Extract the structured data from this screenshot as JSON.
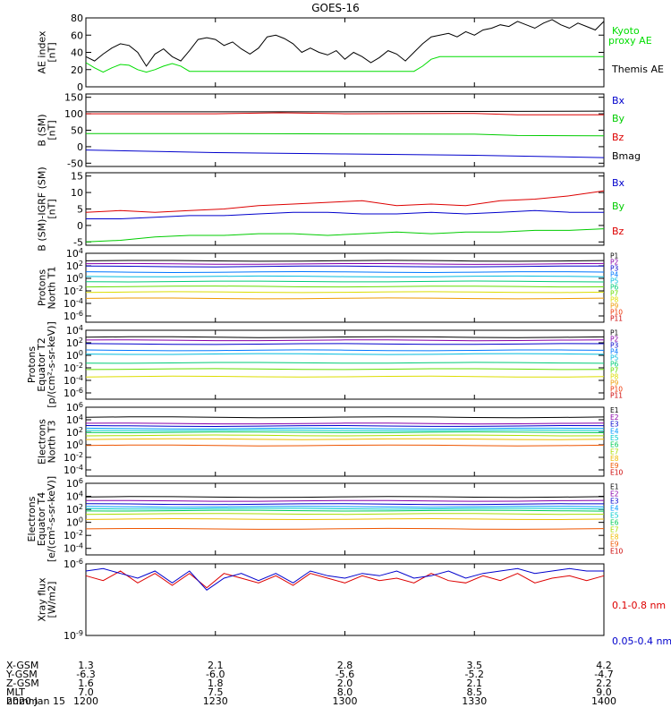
{
  "chart_data": {
    "title": "GOES-16",
    "date_label": "2020 Jan 15",
    "x_axis": {
      "rows": [
        {
          "name": "X-GSM",
          "values": [
            "1.3",
            "2.1",
            "2.8",
            "3.5",
            "4.2"
          ]
        },
        {
          "name": "Y-GSM",
          "values": [
            "-6.3",
            "-6.0",
            "-5.6",
            "-5.2",
            "-4.7"
          ]
        },
        {
          "name": "Z-GSM",
          "values": [
            "1.6",
            "1.8",
            "2.0",
            "2.1",
            "2.2"
          ]
        },
        {
          "name": "MLT",
          "values": [
            "7.0",
            "7.5",
            "8.0",
            "8.5",
            "9.0"
          ]
        },
        {
          "name": "hhmm",
          "values": [
            "1200",
            "1230",
            "1300",
            "1330",
            "1400"
          ]
        }
      ],
      "range_minutes": [
        0,
        120
      ]
    },
    "panels": [
      {
        "id": "ae",
        "type": "line",
        "ylabel": [
          "AE index",
          "[nT]"
        ],
        "ylim": [
          0,
          80
        ],
        "yticks": [
          "0",
          "20",
          "40",
          "60",
          "80"
        ],
        "legend": [
          {
            "label": "Kyoto",
            "color": "#00dd00"
          },
          {
            "label": "proxy AE",
            "color": "#00dd00"
          },
          {
            "label": "Themis AE",
            "color": "#000000"
          }
        ],
        "series": [
          {
            "name": "Themis AE",
            "color": "#000000",
            "x": [
              0,
              2,
              4,
              6,
              8,
              10,
              12,
              14,
              16,
              18,
              20,
              22,
              24,
              26,
              28,
              30,
              32,
              34,
              36,
              38,
              40,
              42,
              44,
              46,
              48,
              50,
              52,
              54,
              56,
              58,
              60,
              62,
              64,
              66,
              68,
              70,
              72,
              74,
              76,
              78,
              80,
              82,
              84,
              86,
              88,
              90,
              92,
              94,
              96,
              98,
              100,
              102,
              104,
              106,
              108,
              110,
              112,
              114,
              116,
              118,
              120
            ],
            "y": [
              35,
              30,
              38,
              45,
              50,
              48,
              40,
              24,
              38,
              44,
              35,
              30,
              42,
              55,
              57,
              55,
              48,
              52,
              44,
              38,
              45,
              58,
              60,
              56,
              50,
              40,
              45,
              40,
              37,
              42,
              32,
              40,
              35,
              28,
              34,
              42,
              38,
              30,
              40,
              50,
              58,
              60,
              62,
              58,
              64,
              60,
              66,
              68,
              72,
              70,
              76,
              72,
              68,
              74,
              78,
              72,
              68,
              74,
              70,
              66,
              76
            ]
          },
          {
            "name": "Kyoto proxy AE",
            "color": "#00dd00",
            "x": [
              0,
              2,
              4,
              6,
              8,
              10,
              12,
              14,
              16,
              18,
              20,
              22,
              24,
              30,
              40,
              50,
              60,
              70,
              75,
              76,
              78,
              80,
              82,
              84,
              90,
              100,
              110,
              120
            ],
            "y": [
              28,
              22,
              17,
              22,
              26,
              25,
              20,
              17,
              20,
              24,
              27,
              24,
              18,
              18,
              18,
              18,
              18,
              18,
              18,
              18,
              24,
              32,
              35,
              35,
              35,
              35,
              35,
              35
            ]
          }
        ]
      },
      {
        "id": "bfield",
        "type": "line",
        "ylabel": [
          "B (SM)",
          "[nT]"
        ],
        "ylim": [
          -60,
          160
        ],
        "yticks": [
          "-50",
          "0",
          "50",
          "100",
          "150"
        ],
        "legend": [
          {
            "label": "Bx",
            "color": "#0000cc"
          },
          {
            "label": "By",
            "color": "#00cc00"
          },
          {
            "label": "Bz",
            "color": "#dd0000"
          },
          {
            "label": "Bmag",
            "color": "#000000"
          }
        ],
        "series": [
          {
            "name": "Bmag",
            "color": "#000000",
            "x": [
              0,
              30,
              60,
              90,
              120
            ],
            "y": [
              106,
              106,
              106,
              107,
              108
            ]
          },
          {
            "name": "Bz",
            "color": "#dd0000",
            "x": [
              0,
              30,
              45,
              60,
              90,
              100,
              120
            ],
            "y": [
              100,
              100,
              103,
              100,
              101,
              97,
              97
            ]
          },
          {
            "name": "By",
            "color": "#00cc00",
            "x": [
              0,
              30,
              60,
              90,
              100,
              120
            ],
            "y": [
              40,
              40,
              39,
              38,
              34,
              33
            ]
          },
          {
            "name": "Bx",
            "color": "#0000cc",
            "x": [
              0,
              30,
              60,
              90,
              120
            ],
            "y": [
              -10,
              -18,
              -22,
              -26,
              -33
            ]
          }
        ]
      },
      {
        "id": "bdiff",
        "type": "line",
        "ylabel": [
          "B (SM)-IGRF (SM)",
          "[nT]"
        ],
        "ylim": [
          -6,
          16
        ],
        "yticks": [
          "-5",
          "0",
          "5",
          "10",
          "15"
        ],
        "legend": [
          {
            "label": "Bx",
            "color": "#0000cc"
          },
          {
            "label": "By",
            "color": "#00cc00"
          },
          {
            "label": "Bz",
            "color": "#dd0000"
          }
        ],
        "series": [
          {
            "name": "Bz",
            "color": "#dd0000",
            "x": [
              0,
              8,
              16,
              24,
              32,
              40,
              48,
              56,
              64,
              72,
              80,
              88,
              96,
              104,
              112,
              120
            ],
            "y": [
              4,
              4.5,
              4,
              4.5,
              5,
              6,
              6.5,
              7,
              7.5,
              6,
              6.5,
              6,
              7.5,
              8,
              9,
              10.5
            ]
          },
          {
            "name": "Bx",
            "color": "#0000cc",
            "x": [
              0,
              8,
              16,
              24,
              32,
              40,
              48,
              56,
              64,
              72,
              80,
              88,
              96,
              104,
              112,
              120
            ],
            "y": [
              2,
              2,
              2.5,
              3,
              3,
              3.5,
              4,
              4,
              3.5,
              3.5,
              4,
              3.5,
              4,
              4.5,
              4,
              4
            ]
          },
          {
            "name": "By",
            "color": "#00cc00",
            "x": [
              0,
              8,
              16,
              24,
              32,
              40,
              48,
              56,
              64,
              72,
              80,
              88,
              96,
              104,
              112,
              120
            ],
            "y": [
              -5,
              -4.5,
              -3.5,
              -3,
              -3,
              -2.5,
              -2.5,
              -3,
              -2.5,
              -2,
              -2.5,
              -2,
              -2,
              -1.5,
              -1.5,
              -1
            ]
          }
        ]
      },
      {
        "id": "protons_t1",
        "type": "log-line",
        "ylabel": [
          "Protons",
          "North T1"
        ],
        "ylim_exp": [
          -7,
          4
        ],
        "yticks": [
          "10^4",
          "10^2",
          "10^0",
          "10^-2",
          "10^-4",
          "10^-6"
        ],
        "legend": [
          {
            "label": "P1",
            "color": "#000000"
          },
          {
            "label": "P2",
            "color": "#8800aa"
          },
          {
            "label": "P3",
            "color": "#0000cc"
          },
          {
            "label": "P4",
            "color": "#0077ff"
          },
          {
            "label": "P5",
            "color": "#00bbdd"
          },
          {
            "label": "P6",
            "color": "#00cc77"
          },
          {
            "label": "P7",
            "color": "#66dd00"
          },
          {
            "label": "P8",
            "color": "#dddd00"
          },
          {
            "label": "P9",
            "color": "#ee9900"
          },
          {
            "label": "P10",
            "color": "#ee3300"
          },
          {
            "label": "P11",
            "color": "#cc0000"
          }
        ],
        "levels_exp": [
          2.8,
          2.3,
          1.9,
          1.0,
          0.3,
          -0.5,
          -1.3,
          -2.2,
          -3.2
        ]
      },
      {
        "id": "protons_t2",
        "type": "log-line",
        "ylabel": [
          "Protons",
          "Equator T2",
          "[p/(cm²-s-sr-keV)]"
        ],
        "ylim_exp": [
          -7,
          4
        ],
        "yticks": [
          "10^4",
          "10^2",
          "10^0",
          "10^-2",
          "10^-4",
          "10^-6"
        ],
        "legend": [
          {
            "label": "P1",
            "color": "#000000"
          },
          {
            "label": "P2",
            "color": "#8800aa"
          },
          {
            "label": "P3",
            "color": "#0000cc"
          },
          {
            "label": "P4",
            "color": "#0077ff"
          },
          {
            "label": "P5",
            "color": "#00bbdd"
          },
          {
            "label": "P6",
            "color": "#00cc77"
          },
          {
            "label": "P7",
            "color": "#66dd00"
          },
          {
            "label": "P8",
            "color": "#dddd00"
          },
          {
            "label": "P9",
            "color": "#ee9900"
          },
          {
            "label": "P10",
            "color": "#ee3300"
          },
          {
            "label": "P11",
            "color": "#cc0000"
          }
        ],
        "levels_exp": [
          2.9,
          2.4,
          1.8,
          0.8,
          0.2,
          -1.2,
          -2.2,
          -3.4
        ]
      },
      {
        "id": "electrons_t3",
        "type": "log-line",
        "ylabel": [
          "Electrons",
          "North T3"
        ],
        "ylim_exp": [
          -5,
          6
        ],
        "yticks": [
          "10^6",
          "10^4",
          "10^2",
          "10^0",
          "10^-2",
          "10^-4"
        ],
        "legend": [
          {
            "label": "E1",
            "color": "#000000"
          },
          {
            "label": "E2",
            "color": "#8800aa"
          },
          {
            "label": "E3",
            "color": "#0000cc"
          },
          {
            "label": "E4",
            "color": "#0099ff"
          },
          {
            "label": "E5",
            "color": "#00cccc"
          },
          {
            "label": "E6",
            "color": "#00cc55"
          },
          {
            "label": "E7",
            "color": "#aadd00"
          },
          {
            "label": "E8",
            "color": "#eebb00"
          },
          {
            "label": "E9",
            "color": "#ee5500"
          },
          {
            "label": "E10",
            "color": "#cc0000"
          }
        ],
        "levels_exp": [
          4.4,
          3.4,
          3.0,
          2.6,
          2.3,
          2.0,
          1.5,
          0.9,
          -0.1
        ]
      },
      {
        "id": "electrons_t4",
        "type": "log-line",
        "ylabel": [
          "Electrons",
          "Equator T4",
          "[e/(cm²-s-sr-keV)]"
        ],
        "ylim_exp": [
          -5,
          6
        ],
        "yticks": [
          "10^6",
          "10^4",
          "10^2",
          "10^0",
          "10^-2",
          "10^-4"
        ],
        "legend": [
          {
            "label": "E1",
            "color": "#000000"
          },
          {
            "label": "E2",
            "color": "#8800aa"
          },
          {
            "label": "E3",
            "color": "#0000cc"
          },
          {
            "label": "E4",
            "color": "#0099ff"
          },
          {
            "label": "E5",
            "color": "#00cccc"
          },
          {
            "label": "E6",
            "color": "#00cc55"
          },
          {
            "label": "E7",
            "color": "#aadd00"
          },
          {
            "label": "E8",
            "color": "#eebb00"
          },
          {
            "label": "E9",
            "color": "#ee5500"
          },
          {
            "label": "E10",
            "color": "#cc0000"
          }
        ],
        "levels_exp": [
          3.9,
          3.3,
          2.8,
          2.4,
          2.1,
          1.8,
          1.3,
          0.5,
          -1.0
        ]
      },
      {
        "id": "xray",
        "type": "log-line",
        "ylabel": [
          "Xray flux",
          "[W/m2]"
        ],
        "ylim_exp": [
          -9,
          -6
        ],
        "yticks": [
          "10^-6",
          "10^-9"
        ],
        "legend": [
          {
            "label": "0.1-0.8 nm",
            "color": "#dd0000"
          },
          {
            "label": "0.05-0.4 nm",
            "color": "#0000cc"
          }
        ],
        "series": [
          {
            "name": "0.1-0.8 nm",
            "color": "#dd0000",
            "x": [
              0,
              4,
              8,
              12,
              16,
              20,
              24,
              28,
              32,
              36,
              40,
              44,
              48,
              52,
              56,
              60,
              64,
              68,
              72,
              76,
              80,
              84,
              88,
              92,
              96,
              100,
              104,
              108,
              112,
              116,
              120
            ],
            "y_exp": [
              -6.5,
              -6.7,
              -6.3,
              -6.8,
              -6.4,
              -6.9,
              -6.4,
              -7.0,
              -6.4,
              -6.6,
              -6.8,
              -6.5,
              -6.9,
              -6.4,
              -6.6,
              -6.8,
              -6.5,
              -6.7,
              -6.6,
              -6.8,
              -6.4,
              -6.7,
              -6.8,
              -6.5,
              -6.7,
              -6.4,
              -6.8,
              -6.6,
              -6.5,
              -6.7,
              -6.5
            ]
          },
          {
            "name": "0.05-0.4 nm",
            "color": "#0000cc",
            "x": [
              0,
              4,
              8,
              12,
              16,
              20,
              24,
              28,
              32,
              36,
              40,
              44,
              48,
              52,
              56,
              60,
              64,
              68,
              72,
              76,
              80,
              84,
              88,
              92,
              96,
              100,
              104,
              108,
              112,
              116,
              120
            ],
            "y_exp": [
              -6.3,
              -6.2,
              -6.4,
              -6.6,
              -6.3,
              -6.8,
              -6.3,
              -7.1,
              -6.6,
              -6.4,
              -6.7,
              -6.4,
              -6.8,
              -6.3,
              -6.5,
              -6.6,
              -6.4,
              -6.5,
              -6.3,
              -6.6,
              -6.5,
              -6.3,
              -6.6,
              -6.4,
              -6.3,
              -6.2,
              -6.4,
              -6.3,
              -6.2,
              -6.3,
              -6.3
            ]
          }
        ]
      }
    ]
  }
}
